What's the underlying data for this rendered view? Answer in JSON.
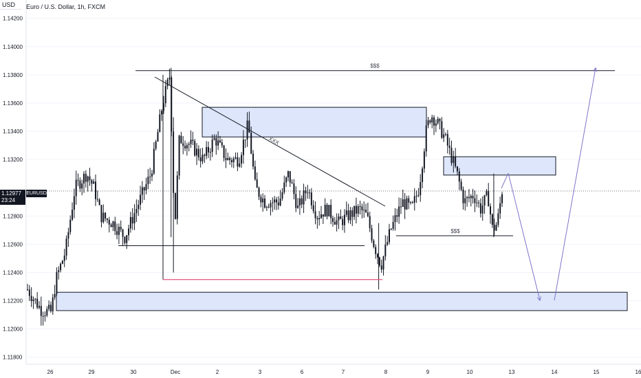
{
  "header": {
    "title": "Euro / U.S. Dollar, 1h, FXCM",
    "currency_button": "USD"
  },
  "price_tag": {
    "price": "1.12977",
    "countdown": "23:24",
    "symbol": "EURUSD"
  },
  "colors": {
    "candle": "#131722",
    "zone_fill": "#dde6fb",
    "zone_border": "#131722",
    "projection": "#7e74c8",
    "red_line": "#e0527a",
    "grid": "#f0f3fa",
    "axis_text": "#131722"
  },
  "chart_data": {
    "type": "candlestick",
    "title": "Euro / U.S. Dollar, 1h, FXCM",
    "ylim": [
      1.1175,
      1.1433
    ],
    "y_ticks": [
      "1.14200",
      "1.14000",
      "1.13800",
      "1.13600",
      "1.13400",
      "1.13200",
      "1.12800",
      "1.12600",
      "1.12400",
      "1.12200",
      "1.12000",
      "1.11800"
    ],
    "x_ticks": [
      "26",
      "29",
      "30",
      "Dec",
      "2",
      "3",
      "6",
      "7",
      "8",
      "9",
      "10",
      "13",
      "14",
      "15",
      "16"
    ],
    "price_path": [
      {
        "x": 0.0,
        "y": 1.1228
      },
      {
        "x": 0.6,
        "y": 1.1213
      },
      {
        "x": 1.0,
        "y": 1.1212
      },
      {
        "x": 1.2,
        "y": 1.1235
      },
      {
        "x": 1.6,
        "y": 1.1255
      },
      {
        "x": 2.0,
        "y": 1.13
      },
      {
        "x": 2.5,
        "y": 1.131
      },
      {
        "x": 2.8,
        "y": 1.13
      },
      {
        "x": 3.1,
        "y": 1.128
      },
      {
        "x": 3.6,
        "y": 1.1275
      },
      {
        "x": 4.1,
        "y": 1.1265
      },
      {
        "x": 4.7,
        "y": 1.129
      },
      {
        "x": 5.2,
        "y": 1.131
      },
      {
        "x": 5.7,
        "y": 1.136
      },
      {
        "x": 6.0,
        "y": 1.138
      },
      {
        "x": 6.2,
        "y": 1.127
      },
      {
        "x": 6.4,
        "y": 1.1335
      },
      {
        "x": 6.9,
        "y": 1.133
      },
      {
        "x": 7.4,
        "y": 1.132
      },
      {
        "x": 7.9,
        "y": 1.1335
      },
      {
        "x": 8.4,
        "y": 1.132
      },
      {
        "x": 8.9,
        "y": 1.132
      },
      {
        "x": 9.3,
        "y": 1.1345
      },
      {
        "x": 9.6,
        "y": 1.13
      },
      {
        "x": 10.0,
        "y": 1.129
      },
      {
        "x": 10.6,
        "y": 1.129
      },
      {
        "x": 11.0,
        "y": 1.131
      },
      {
        "x": 11.4,
        "y": 1.1285
      },
      {
        "x": 11.8,
        "y": 1.13
      },
      {
        "x": 12.2,
        "y": 1.128
      },
      {
        "x": 12.6,
        "y": 1.1285
      },
      {
        "x": 13.1,
        "y": 1.1275
      },
      {
        "x": 13.5,
        "y": 1.128
      },
      {
        "x": 14.0,
        "y": 1.1285
      },
      {
        "x": 14.3,
        "y": 1.128
      },
      {
        "x": 14.6,
        "y": 1.126
      },
      {
        "x": 14.9,
        "y": 1.1245
      },
      {
        "x": 15.3,
        "y": 1.127
      },
      {
        "x": 15.8,
        "y": 1.129
      },
      {
        "x": 16.2,
        "y": 1.1285
      },
      {
        "x": 16.5,
        "y": 1.13
      },
      {
        "x": 16.8,
        "y": 1.134
      },
      {
        "x": 17.0,
        "y": 1.1352
      },
      {
        "x": 17.3,
        "y": 1.1345
      },
      {
        "x": 17.6,
        "y": 1.1335
      },
      {
        "x": 17.9,
        "y": 1.132
      },
      {
        "x": 18.1,
        "y": 1.131
      },
      {
        "x": 18.4,
        "y": 1.129
      },
      {
        "x": 18.8,
        "y": 1.1295
      },
      {
        "x": 19.1,
        "y": 1.1285
      },
      {
        "x": 19.4,
        "y": 1.1295
      },
      {
        "x": 19.6,
        "y": 1.127
      },
      {
        "x": 19.8,
        "y": 1.1275
      },
      {
        "x": 20.0,
        "y": 1.1298
      }
    ],
    "annotations": [
      {
        "label": "$$$",
        "type": "level",
        "price": 1.1383
      },
      {
        "label": "XXX",
        "type": "trendline"
      },
      {
        "label": "$$$",
        "type": "level",
        "price": 1.1266
      }
    ]
  }
}
